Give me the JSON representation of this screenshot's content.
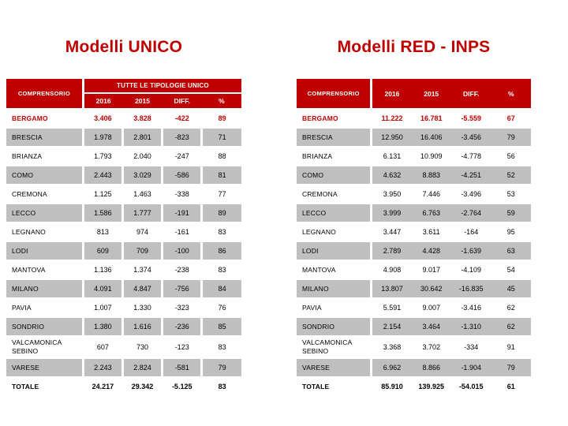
{
  "colors": {
    "accent": "#C00000",
    "row_shade": "#BFBFBF",
    "header_text": "#FFFFFF"
  },
  "left_panel": {
    "title": "Modelli UNICO",
    "table": {
      "name_header": "COMPRENSORIO",
      "group_header": "TUTTE LE TIPOLOGIE UNICO",
      "columns": [
        "2016",
        "2015",
        "DIFF.",
        "%"
      ],
      "rows": [
        {
          "name": "BERGAMO",
          "values": [
            "3.406",
            "3.828",
            "-422",
            "89"
          ],
          "style": "highlight"
        },
        {
          "name": "BRESCIA",
          "values": [
            "1.978",
            "2.801",
            "-823",
            "71"
          ],
          "style": "shade"
        },
        {
          "name": "BRIANZA",
          "values": [
            "1.793",
            "2.040",
            "-247",
            "88"
          ],
          "style": ""
        },
        {
          "name": "COMO",
          "values": [
            "2.443",
            "3.029",
            "-586",
            "81"
          ],
          "style": "shade"
        },
        {
          "name": "CREMONA",
          "values": [
            "1.125",
            "1.463",
            "-338",
            "77"
          ],
          "style": ""
        },
        {
          "name": "LECCO",
          "values": [
            "1.586",
            "1.777",
            "-191",
            "89"
          ],
          "style": "shade"
        },
        {
          "name": "LEGNANO",
          "values": [
            "813",
            "974",
            "-161",
            "83"
          ],
          "style": ""
        },
        {
          "name": "LODI",
          "values": [
            "609",
            "709",
            "-100",
            "86"
          ],
          "style": "shade"
        },
        {
          "name": "MANTOVA",
          "values": [
            "1.136",
            "1.374",
            "-238",
            "83"
          ],
          "style": ""
        },
        {
          "name": "MILANO",
          "values": [
            "4.091",
            "4.847",
            "-756",
            "84"
          ],
          "style": "shade"
        },
        {
          "name": "PAVIA",
          "values": [
            "1.007",
            "1.330",
            "-323",
            "76"
          ],
          "style": ""
        },
        {
          "name": "SONDRIO",
          "values": [
            "1.380",
            "1.616",
            "-236",
            "85"
          ],
          "style": "shade"
        },
        {
          "name": "VALCAMONICA SEBINO",
          "values": [
            "607",
            "730",
            "-123",
            "83"
          ],
          "style": ""
        },
        {
          "name": "VARESE",
          "values": [
            "2.243",
            "2.824",
            "-581",
            "79"
          ],
          "style": "shade"
        },
        {
          "name": "TOTALE",
          "values": [
            "24.217",
            "29.342",
            "-5.125",
            "83"
          ],
          "style": "total"
        }
      ]
    }
  },
  "right_panel": {
    "title": "Modelli RED - INPS",
    "table": {
      "name_header": "COMPRENSORIO",
      "columns": [
        "2016",
        "2015",
        "DIFF.",
        "%"
      ],
      "rows": [
        {
          "name": "BERGAMO",
          "values": [
            "11.222",
            "16.781",
            "-5.559",
            "67"
          ],
          "style": "highlight"
        },
        {
          "name": "BRESCIA",
          "values": [
            "12.950",
            "16.406",
            "-3.456",
            "79"
          ],
          "style": "shade"
        },
        {
          "name": "BRIANZA",
          "values": [
            "6.131",
            "10.909",
            "-4.778",
            "56"
          ],
          "style": ""
        },
        {
          "name": "COMO",
          "values": [
            "4.632",
            "8.883",
            "-4.251",
            "52"
          ],
          "style": "shade"
        },
        {
          "name": "CREMONA",
          "values": [
            "3.950",
            "7.446",
            "-3.496",
            "53"
          ],
          "style": ""
        },
        {
          "name": "LECCO",
          "values": [
            "3.999",
            "6.763",
            "-2.764",
            "59"
          ],
          "style": "shade"
        },
        {
          "name": "LEGNANO",
          "values": [
            "3.447",
            "3.611",
            "-164",
            "95"
          ],
          "style": ""
        },
        {
          "name": "LODI",
          "values": [
            "2.789",
            "4.428",
            "-1.639",
            "63"
          ],
          "style": "shade"
        },
        {
          "name": "MANTOVA",
          "values": [
            "4.908",
            "9.017",
            "-4.109",
            "54"
          ],
          "style": ""
        },
        {
          "name": "MILANO",
          "values": [
            "13.807",
            "30.642",
            "-16.835",
            "45"
          ],
          "style": "shade"
        },
        {
          "name": "PAVIA",
          "values": [
            "5.591",
            "9.007",
            "-3.416",
            "62"
          ],
          "style": ""
        },
        {
          "name": "SONDRIO",
          "values": [
            "2.154",
            "3.464",
            "-1.310",
            "62"
          ],
          "style": "shade"
        },
        {
          "name": "VALCAMONICA SEBINO",
          "values": [
            "3.368",
            "3.702",
            "-334",
            "91"
          ],
          "style": ""
        },
        {
          "name": "VARESE",
          "values": [
            "6.962",
            "8.866",
            "-1.904",
            "79"
          ],
          "style": "shade"
        },
        {
          "name": "TOTALE",
          "values": [
            "85.910",
            "139.925",
            "-54.015",
            "61"
          ],
          "style": "total"
        }
      ]
    }
  }
}
